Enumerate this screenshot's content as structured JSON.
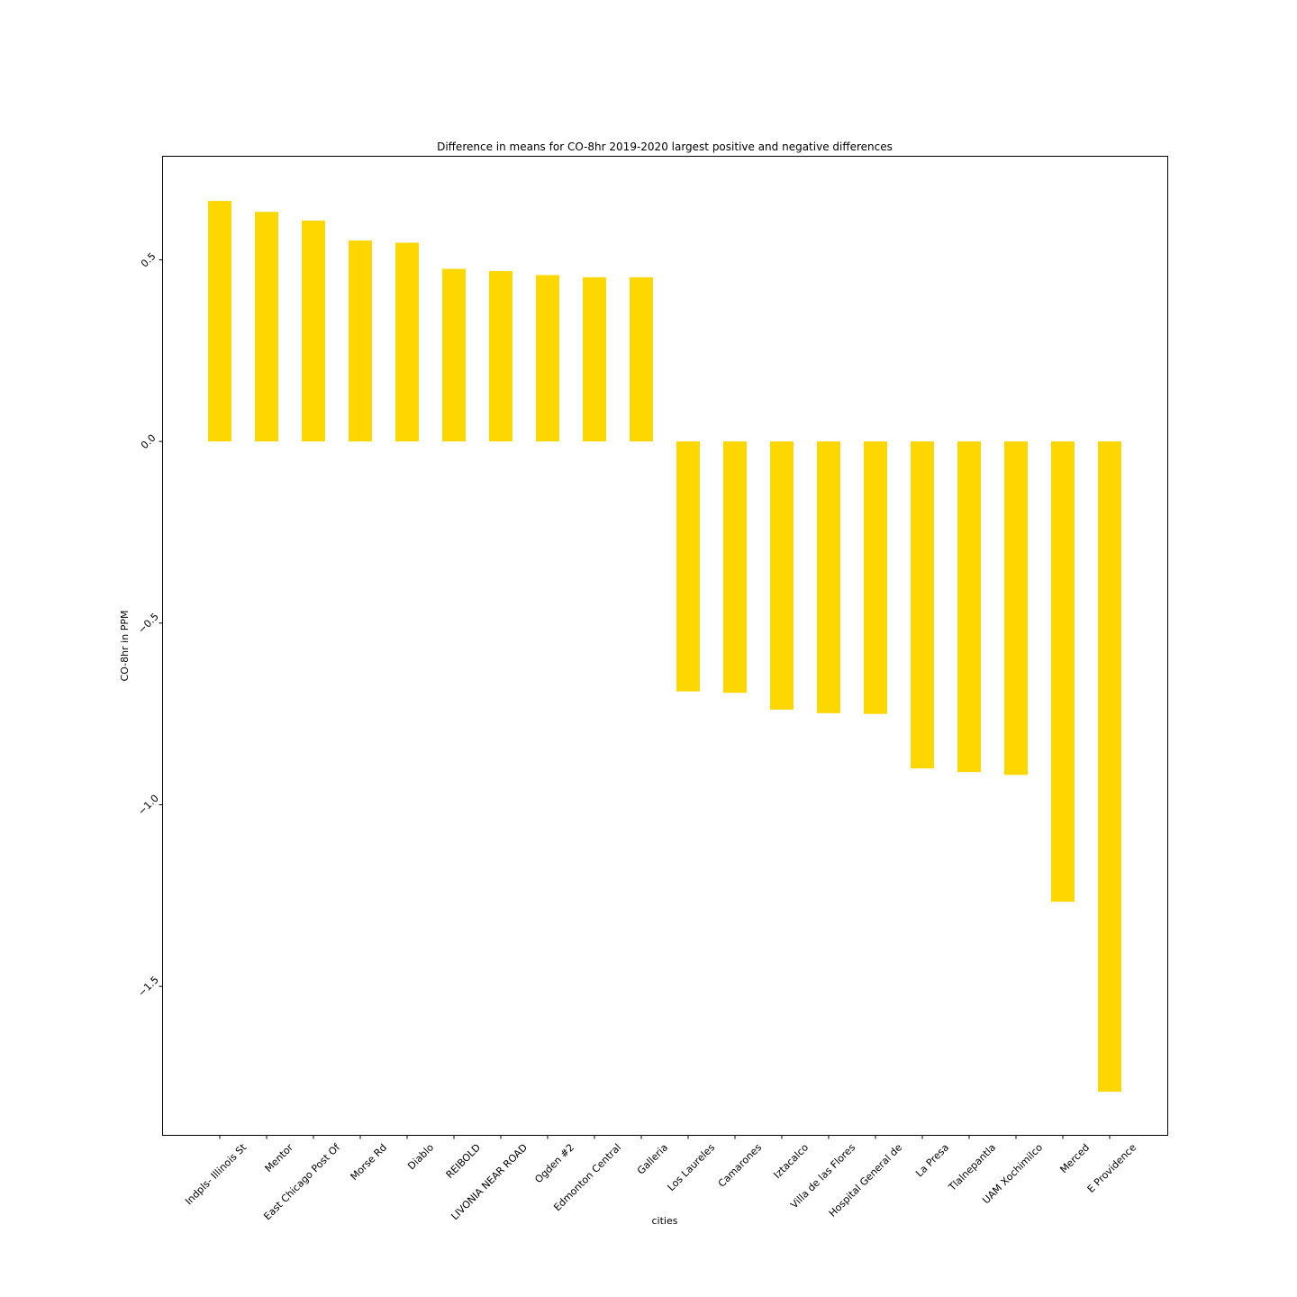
{
  "chart_data": {
    "type": "bar",
    "title": "Difference in means for CO-8hr 2019-2020 largest positive and negative differences",
    "xlabel": "cities",
    "ylabel": "CO-8hr in PPM",
    "categories": [
      "Indpls- Illinois St",
      "Mentor",
      "East Chicago Post Of",
      "Morse Rd",
      "Diablo",
      "REIBOLD",
      "LIVONIA NEAR ROAD",
      "Ogden #2",
      "Edmonton Central",
      "Galleria",
      "Los Laureles",
      "Camarones",
      "Iztacalco",
      "Villa de las Flores",
      "Hospital General de",
      "La Presa",
      "Tlalnepantla",
      "UAM Xochimilco",
      "Merced",
      "E Providence"
    ],
    "values": [
      0.662,
      0.632,
      0.608,
      0.553,
      0.547,
      0.475,
      0.469,
      0.458,
      0.452,
      0.452,
      -0.688,
      -0.692,
      -0.738,
      -0.748,
      -0.75,
      -0.9,
      -0.91,
      -0.918,
      -1.267,
      -1.79
    ],
    "ylim": [
      -1.91,
      0.785
    ],
    "yticks": [
      "0.5",
      "0.0",
      "−0.5",
      "−1.0",
      "−1.5"
    ],
    "ytick_values": [
      0.5,
      0.0,
      -0.5,
      -1.0,
      -1.5
    ],
    "bar_color": "#ffd700",
    "grid": false,
    "legend": "none"
  }
}
